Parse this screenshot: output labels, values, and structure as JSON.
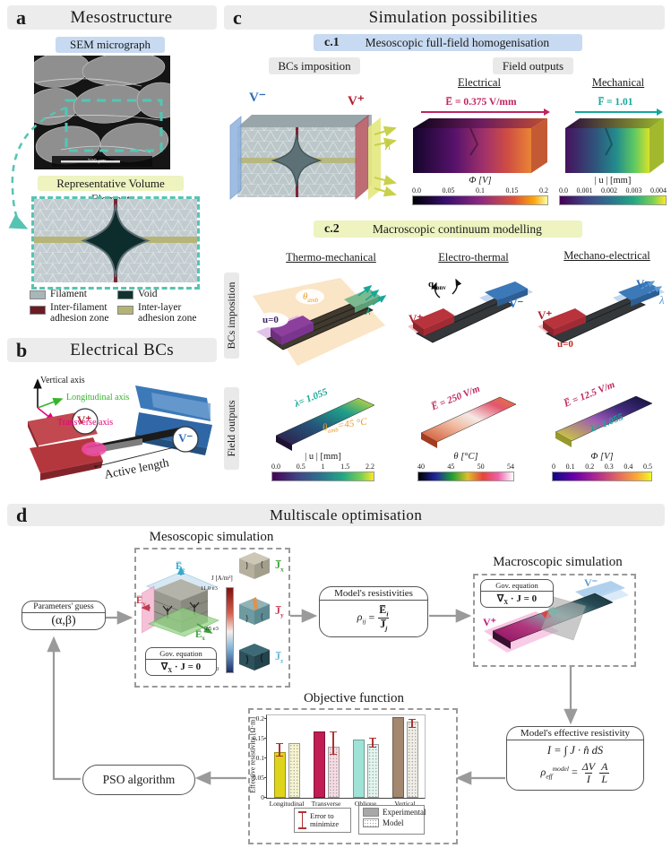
{
  "colors": {
    "accent_teal": "#56c4b2",
    "voltage_plus": "#b02030",
    "voltage_minus": "#2f6db5",
    "lambda_yellow": "#b8c22f",
    "lambda_teal": "#14a89a",
    "e_field": "#c0245e",
    "temperature": "#e89b2d"
  },
  "panel_a": {
    "tag": "a",
    "title": "Mesostructure",
    "sem_chip": "SEM micrograph",
    "scale_bar": "500 µm",
    "rve_chip": "Representative Volume Element",
    "legend": [
      {
        "label": "Filament",
        "color": "#a9b6b9"
      },
      {
        "label": "Void",
        "color": "#123231"
      },
      {
        "label": "Inter-filament adhesion zone",
        "color": "#6d1a27"
      },
      {
        "label": "Inter-layer adhesion zone",
        "color": "#b4b376"
      }
    ]
  },
  "panel_b": {
    "tag": "b",
    "title": "Electrical BCs",
    "axes": {
      "vertical": "Vertical axis",
      "longitudinal": "Longitudinal axis",
      "transverse": "Transverse axis"
    },
    "v_plus": "V⁺",
    "v_minus": "V⁻",
    "active_length": "Active length"
  },
  "panel_c": {
    "tag": "c",
    "title": "Simulation possibilities",
    "c1": {
      "tag": "c.1",
      "title": "Mesoscopic full-field homogenisation",
      "bcs_chip": "BCs imposition",
      "outputs_chip": "Field outputs",
      "v_minus": "V⁻",
      "v_plus": "V⁺",
      "lambda": "λ",
      "electrical": {
        "header": "Electrical",
        "annotation": "E̅ = 0.375 V/mm",
        "cbar_label": "Φ [V]",
        "cbar_ticks": [
          "0.0",
          "0.05",
          "0.1",
          "0.15",
          "0.2"
        ]
      },
      "mechanical": {
        "header": "Mechanical",
        "annotation": "F̅ = 1.01",
        "cbar_label": "| u | [mm]",
        "cbar_ticks": [
          "0.0",
          "0.001",
          "0.002",
          "0.003",
          "0.004"
        ]
      }
    },
    "c2": {
      "tag": "c.2",
      "title": "Macroscopic continuum modelling",
      "row_bcs": "BCs imposition",
      "row_outputs": "Field outputs",
      "thermo": {
        "header": "Thermo-mechanical",
        "u0": "u=0",
        "theta_base": "θ",
        "theta_sub": "amb",
        "lambda": "λ",
        "out_lambda": "λ= 1.055",
        "out_theta_pre": "θ",
        "out_theta_sub": "amb",
        "out_theta_post": "=45 °C",
        "cbar_label": "| u | [mm]",
        "cbar_ticks": [
          "0.0",
          "0.5",
          "1",
          "1.5",
          "2.2"
        ]
      },
      "electro": {
        "header": "Electro-thermal",
        "q_base": "q",
        "q_sub": "conv",
        "v_plus": "V⁺",
        "v_minus": "V⁻",
        "out_e": "E̅ = 250 V/m",
        "cbar_label": "θ [°C]",
        "cbar_ticks": [
          "40",
          "45",
          "50",
          "54"
        ]
      },
      "mechano": {
        "header": "Mechano-electrical",
        "v_plus": "V⁺",
        "v_minus": "V⁻",
        "lambda": "λ",
        "u0": "u=0",
        "out_e": "E̅ = 12.5 V/m",
        "out_lambda": "λ= 1.055",
        "cbar_label": "Φ [V]",
        "cbar_ticks": [
          "0",
          "0.1",
          "0.2",
          "0.3",
          "0.4",
          "0.5"
        ]
      }
    }
  },
  "panel_d": {
    "tag": "d",
    "title": "Multiscale optimisation",
    "params_box": {
      "title": "Parameters' guess",
      "value": "(α,β)"
    },
    "meso": {
      "title": "Mesoscopic simulation",
      "ez_base": "E̅",
      "ez_sub": "z",
      "ey_base": "E̅",
      "ey_sub": "y",
      "ex_base": "E̅",
      "ex_sub": "x",
      "cbar_label": "J [A/m²]",
      "cbar_ticks": [
        "11.0 e3",
        "5.5 e3",
        "0.0"
      ],
      "jx_base": "J̅",
      "jx_sub": "x",
      "jy_base": "J̅",
      "jy_sub": "y",
      "jz_base": "J̅",
      "jz_sub": "z",
      "gov_title": "Gov. equation",
      "gov_pre": "∇",
      "gov_sub": "X",
      "gov_post": " · J = 0"
    },
    "resistivities": {
      "title": "Model's resistivities",
      "lhs_base": "ρ",
      "lhs_sub": "ij",
      "equals": "=",
      "num_base": "E̅",
      "num_sub": "i",
      "den_base": "J̅",
      "den_sub": "j"
    },
    "macro": {
      "title": "Macroscopic simulation",
      "gov_title": "Gov. equation",
      "gov_pre": "∇",
      "gov_sub": "X",
      "gov_post": " · J = 0",
      "v_plus": "V⁺",
      "v_minus": "V⁻"
    },
    "effective": {
      "title": "Model's effective resistivity",
      "eq1": "I = ∫ J · n̂ dS",
      "rho_base": "ρ",
      "rho_sub": "eff",
      "rho_sup": "model",
      "equals": "=",
      "frac1_num": "ΔV",
      "frac1_den": "I",
      "frac2_num": "A",
      "frac2_den": "L"
    },
    "pso": "PSO algorithm",
    "objective_title": "Objective function"
  },
  "chart_data": {
    "type": "bar",
    "title": "Objective function",
    "categories": [
      "Longitudinal",
      "Transverse",
      "Oblique",
      "Vertical"
    ],
    "series": [
      {
        "name": "Experimental",
        "values": [
          0.117,
          0.168,
          0.149,
          0.205
        ],
        "colors": [
          "#ded41c",
          "#bf1d53",
          "#9fe3d6",
          "#a3876f"
        ]
      },
      {
        "name": "Model",
        "values": [
          0.139,
          0.131,
          0.136,
          0.193
        ],
        "colors": [
          "#f6f4cf",
          "#f6dbe3",
          "#e2f6f0",
          "#efede6"
        ]
      }
    ],
    "error_bars": [
      {
        "category": "Longitudinal",
        "series": "Experimental",
        "low": 0.106,
        "high": 0.14
      },
      {
        "category": "Transverse",
        "series": "Model",
        "low": 0.11,
        "high": 0.168
      },
      {
        "category": "Oblique",
        "series": "Model",
        "low": 0.127,
        "high": 0.152
      },
      {
        "category": "Vertical",
        "series": "Model",
        "low": 0.178,
        "high": 0.202
      }
    ],
    "ylabel": "Effective resistivity [Ω·m]",
    "ylim": [
      0,
      0.21
    ],
    "yticks": [
      0,
      0.05,
      0.1,
      0.15,
      0.2
    ],
    "grid": false,
    "legend_position": "below",
    "legend": {
      "error": "Error to minimize",
      "series": [
        "Experimental",
        "Model"
      ]
    }
  }
}
